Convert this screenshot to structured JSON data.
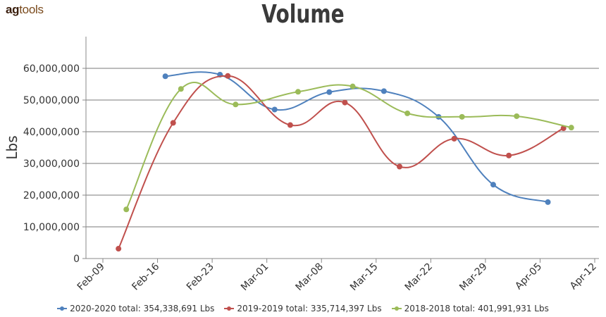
{
  "logo": {
    "part1": "ag",
    "part2": "tools"
  },
  "chart_data": {
    "type": "line",
    "title": "Volume",
    "ylabel": "Lbs",
    "xlabel": "",
    "ylim": [
      0,
      70000000
    ],
    "yticks": [
      0,
      10000000,
      20000000,
      30000000,
      40000000,
      50000000,
      60000000
    ],
    "ytick_labels": [
      "0",
      "10,000,000",
      "20,000,000",
      "30,000,000",
      "40,000,000",
      "50,000,000",
      "60,000,000"
    ],
    "xlim": [
      "2020-02-09",
      "2020-04-12"
    ],
    "xticks": [
      "2020-02-09",
      "2020-02-16",
      "2020-02-23",
      "2020-03-01",
      "2020-03-08",
      "2020-03-15",
      "2020-03-22",
      "2020-03-29",
      "2020-04-05",
      "2020-04-12"
    ],
    "xtick_labels": [
      "Feb-09",
      "Feb-16",
      "Feb-23",
      "Mar-01",
      "Mar-08",
      "Mar-15",
      "Mar-22",
      "Mar-29",
      "Apr-05",
      "Apr-12"
    ],
    "grid": "horizontal",
    "legend_position": "bottom",
    "series": [
      {
        "name": "2020-2020 total: 354,338,691 Lbs",
        "color": "#4f81bd",
        "x": [
          "2020-02-17",
          "2020-02-24",
          "2020-03-02",
          "2020-03-09",
          "2020-03-16",
          "2020-03-23",
          "2020-03-30",
          "2020-04-06"
        ],
        "y": [
          57500000,
          58000000,
          47000000,
          52500000,
          52800000,
          44700000,
          23300000,
          17800000
        ]
      },
      {
        "name": "2019-2019 total: 335,714,397 Lbs",
        "color": "#c0504d",
        "x": [
          "2020-02-11",
          "2020-02-18",
          "2020-02-25",
          "2020-03-04",
          "2020-03-11",
          "2020-03-18",
          "2020-03-25",
          "2020-04-01",
          "2020-04-08"
        ],
        "y": [
          3100000,
          42800000,
          57600000,
          42100000,
          49200000,
          29000000,
          37800000,
          32500000,
          41100000
        ]
      },
      {
        "name": "2018-2018 total: 401,991,931 Lbs",
        "color": "#9bbb59",
        "x": [
          "2020-02-12",
          "2020-02-19",
          "2020-02-26",
          "2020-03-05",
          "2020-03-12",
          "2020-03-19",
          "2020-03-26",
          "2020-04-02",
          "2020-04-09"
        ],
        "y": [
          15500000,
          53500000,
          48600000,
          52600000,
          54300000,
          45800000,
          44700000,
          44900000,
          41300000
        ]
      }
    ]
  }
}
